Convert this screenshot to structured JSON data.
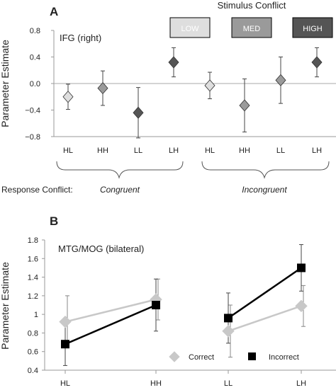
{
  "chart_data": [
    {
      "panel_label": "A",
      "type": "scatter",
      "region": "IFG (right)",
      "ylabel": "Parameter Estimate",
      "ylim": [
        -0.8,
        0.8
      ],
      "yticks": [
        "0.8",
        "0.4",
        "0.0",
        "−0.4",
        "−0.8"
      ],
      "ytick_values": [
        0.8,
        0.4,
        0.0,
        -0.4,
        -0.8
      ],
      "categories": [
        "HL",
        "HH",
        "LL",
        "LH",
        "HL",
        "HH",
        "LL",
        "LH"
      ],
      "stimulus_conflict": [
        "LOW",
        "MED",
        "HIGH",
        "HIGH",
        "LOW",
        "MED",
        "MED",
        "HIGH"
      ],
      "values": [
        -0.2,
        -0.07,
        -0.44,
        0.32,
        -0.03,
        -0.33,
        0.05,
        0.32
      ],
      "error": [
        0.19,
        0.26,
        0.38,
        0.22,
        0.2,
        0.4,
        0.35,
        0.22
      ],
      "legend_title": "Stimulus Conflict",
      "legend": [
        {
          "label": "LOW",
          "color": "#dedede"
        },
        {
          "label": "MED",
          "color": "#9a9a9a"
        },
        {
          "label": "HIGH",
          "color": "#555555"
        }
      ],
      "response_conflict_label": "Response Conflict:",
      "groups": [
        "Congruent",
        "Incongruent"
      ]
    },
    {
      "panel_label": "B",
      "type": "line",
      "region": "MTG/MOG (bilateral)",
      "ylabel": "Parameter Estimate",
      "ylim": [
        0.4,
        1.8
      ],
      "yticks": [
        "1.8",
        "1.6",
        "1.4",
        "1.2",
        "1",
        "0.8",
        "0.6",
        "0.4"
      ],
      "ytick_values": [
        1.8,
        1.6,
        1.4,
        1.2,
        1.0,
        0.8,
        0.6,
        0.4
      ],
      "categories": [
        "HL",
        "HH",
        "LL",
        "LH"
      ],
      "series": [
        {
          "name": "Correct",
          "color": "#c8c8c8",
          "values": [
            0.92,
            1.16,
            0.82,
            1.09
          ],
          "error": [
            0.28,
            0.22,
            0.28,
            0.22
          ]
        },
        {
          "name": "Incorrect",
          "color": "#000000",
          "values": [
            0.68,
            1.1,
            0.96,
            1.5
          ],
          "error": [
            0.23,
            0.28,
            0.27,
            0.25
          ]
        }
      ]
    }
  ]
}
